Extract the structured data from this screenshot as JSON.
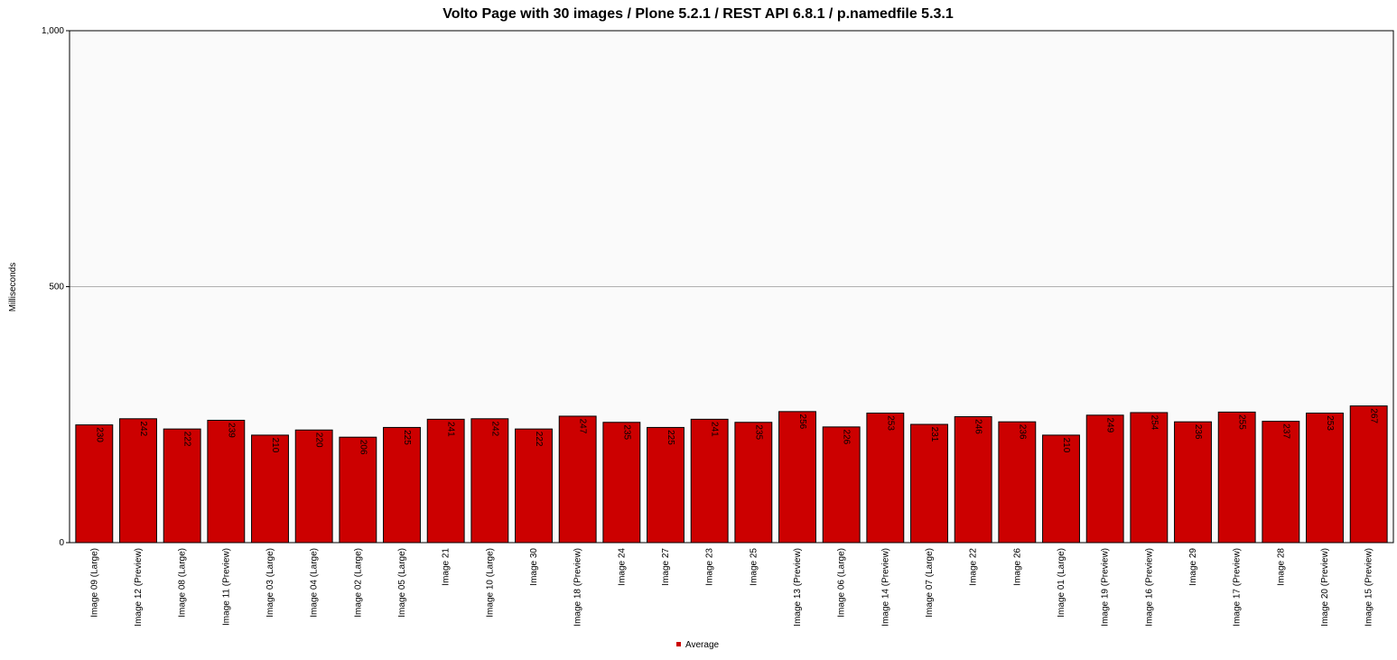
{
  "chart_data": {
    "type": "bar",
    "title": "Volto Page with 30 images  /  Plone 5.2.1  /  REST API 6.8.1  /  p.namedfile 5.3.1",
    "xlabel": "",
    "ylabel": "Milliseconds",
    "ylim": [
      0,
      1000
    ],
    "yticks": [
      0,
      500,
      1000
    ],
    "ytick_labels": [
      "0",
      "500",
      "1,000"
    ],
    "grid": true,
    "legend_position": "bottom",
    "bar_color": "#cc0000",
    "plot_background": "#fafafa",
    "categories": [
      "Image 09 (Large)",
      "Image 12 (Preview)",
      "Image 08 (Large)",
      "Image 11 (Preview)",
      "Image 03 (Large)",
      "Image 04 (Large)",
      "Image 02 (Large)",
      "Image 05 (Large)",
      "Image 21",
      "Image 10 (Large)",
      "Image 30",
      "Image 18 (Preview)",
      "Image 24",
      "Image 27",
      "Image 23",
      "Image 25",
      "Image 13 (Preview)",
      "Image 06 (Large)",
      "Image 14 (Preview)",
      "Image 07 (Large)",
      "Image 22",
      "Image 26",
      "Image 01 (Large)",
      "Image 19 (Preview)",
      "Image 16 (Preview)",
      "Image 29",
      "Image 17 (Preview)",
      "Image 28",
      "Image 20 (Preview)",
      "Image 15 (Preview)"
    ],
    "series": [
      {
        "name": "Average",
        "values": [
          230,
          242,
          222,
          239,
          210,
          220,
          206,
          225,
          241,
          242,
          222,
          247,
          235,
          225,
          241,
          235,
          256,
          226,
          253,
          231,
          246,
          236,
          210,
          249,
          254,
          236,
          255,
          237,
          253,
          267
        ]
      }
    ]
  }
}
